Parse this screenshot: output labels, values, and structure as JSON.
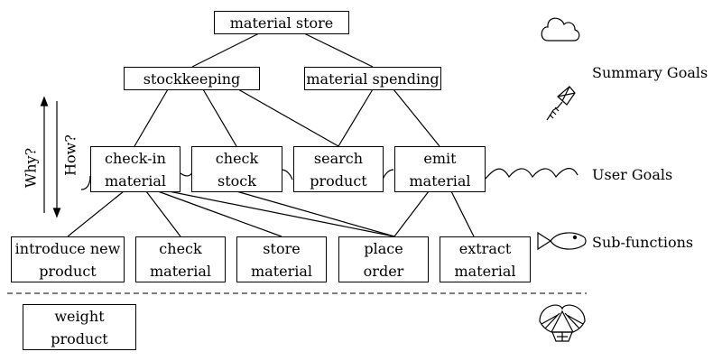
{
  "boxes": {
    "material_store": "material store",
    "stockkeeping": "stockkeeping",
    "material_spending": "material spending",
    "check_in_material": "check-in\nmaterial",
    "check_stock": "check\nstock",
    "search_product": "search\nproduct",
    "emit_material": "emit\nmaterial",
    "introduce_new_product": "introduce new\nproduct",
    "check_material": "check\nmaterial",
    "store_material": "store\nmaterial",
    "place_order": "place\norder",
    "extract_material": "extract\nmaterial",
    "weight_product": "weight\nproduct"
  },
  "levels": {
    "summary": "Summary Goals",
    "user": "User Goals",
    "sub": "Sub-functions"
  },
  "axis": {
    "why": "Why?",
    "how": "How?"
  },
  "icons": [
    "cloud-icon",
    "kite-icon",
    "waves-icon",
    "fish-icon",
    "clam-icon"
  ]
}
